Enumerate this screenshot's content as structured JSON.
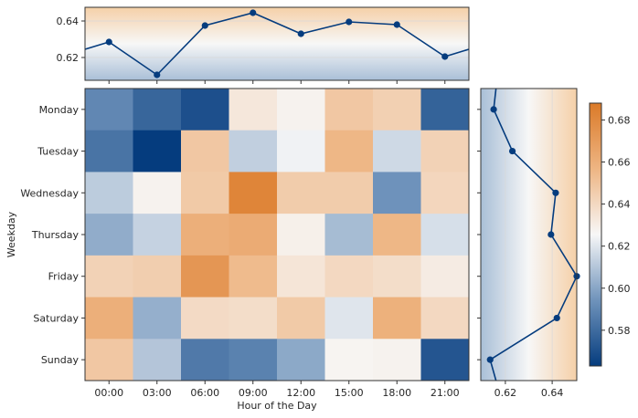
{
  "chart_data": {
    "type": "heatmap",
    "xlabel": "Hour of the Day",
    "ylabel": "Weekday",
    "categories_x": [
      "00:00",
      "03:00",
      "06:00",
      "09:00",
      "12:00",
      "15:00",
      "18:00",
      "21:00"
    ],
    "categories_y": [
      "Monday",
      "Tuesday",
      "Wednesday",
      "Thursday",
      "Friday",
      "Saturday",
      "Sunday"
    ],
    "values": [
      [
        0.59,
        0.578,
        0.57,
        0.633,
        0.628,
        0.648,
        0.644,
        0.577
      ],
      [
        0.583,
        0.563,
        0.648,
        0.613,
        0.624,
        0.656,
        0.616,
        0.643
      ],
      [
        0.612,
        0.628,
        0.647,
        0.682,
        0.646,
        0.646,
        0.594,
        0.641
      ],
      [
        0.602,
        0.614,
        0.66,
        0.662,
        0.629,
        0.607,
        0.656,
        0.618
      ],
      [
        0.643,
        0.645,
        0.673,
        0.654,
        0.634,
        0.64,
        0.638,
        0.631
      ],
      [
        0.66,
        0.603,
        0.639,
        0.638,
        0.647,
        0.62,
        0.659,
        0.64
      ],
      [
        0.648,
        0.61,
        0.585,
        0.588,
        0.601,
        0.627,
        0.628,
        0.572
      ]
    ],
    "colorbar": {
      "min": 0.563,
      "max": 0.688,
      "ticks": [
        0.58,
        0.6,
        0.62,
        0.64,
        0.66,
        0.68
      ]
    },
    "top_marginal": {
      "type": "line",
      "values": [
        0.6285,
        0.6105,
        0.6375,
        0.6445,
        0.633,
        0.6395,
        0.638,
        0.6205
      ],
      "left_edge": 0.6245,
      "right_edge": 0.6245,
      "ylim": [
        0.6075,
        0.6475
      ],
      "ticks": [
        0.62,
        0.64
      ]
    },
    "right_marginal": {
      "type": "line",
      "values": [
        0.615,
        0.623,
        0.6415,
        0.6395,
        0.6505,
        0.642,
        0.6135
      ],
      "top_edge": 0.616,
      "bottom_edge": 0.616,
      "xlim": [
        0.6095,
        0.6505
      ],
      "ticks": [
        0.62,
        0.64
      ]
    }
  }
}
